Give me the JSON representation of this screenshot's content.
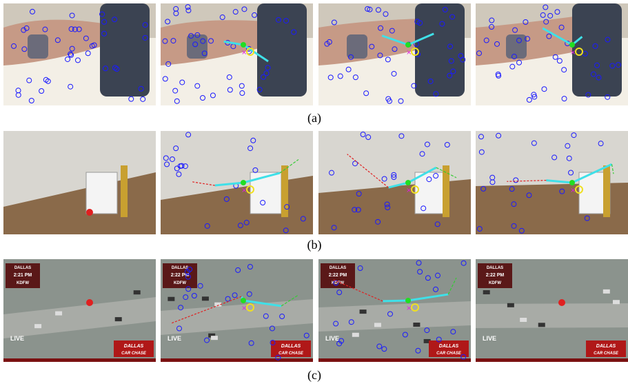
{
  "panels": [
    {
      "caption": "(a)"
    },
    {
      "caption": "(b)"
    },
    {
      "caption": "(c)",
      "frames": [
        {
          "city": "DALLAS",
          "time": "2:21 PM",
          "station": "KDFW",
          "live": "LIVE",
          "banner": "DALLAS",
          "banner_sub": "CAR CHASE"
        },
        {
          "city": "DALLAS",
          "time": "2:22 PM",
          "station": "KDFW",
          "live": "LIVE",
          "banner": "DALLAS",
          "banner_sub": "CAR CHASE"
        },
        {
          "city": "DALLAS",
          "time": "2:22 PM",
          "station": "KDFW",
          "live": "LIVE",
          "banner": "DALLAS",
          "banner_sub": "CAR CHASE"
        },
        {
          "city": "DALLAS",
          "time": "2:22 PM",
          "station": "KDFW",
          "live": "LIVE",
          "banner": "DALLAS",
          "banner_sub": "CAR CHASE"
        }
      ]
    }
  ]
}
